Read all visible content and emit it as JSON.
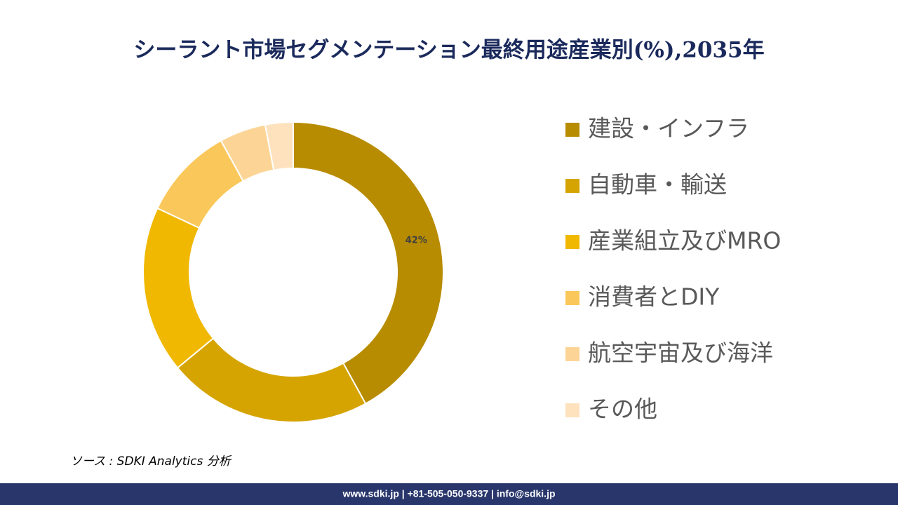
{
  "chart_data": {
    "type": "donut",
    "title": "シーラント市場セグメンテーション最終用途産業別(%),2035年",
    "categories": [
      "建設・インフラ",
      "自動車・輸送",
      "産業組立及びMRO",
      "消費者とDIY",
      "航空宇宙及び海洋",
      "その他"
    ],
    "values": [
      42,
      22,
      18,
      10,
      5,
      3
    ],
    "value_labels": [
      "42%",
      null,
      null,
      null,
      null,
      null
    ],
    "colors": [
      "#b88c00",
      "#d6a400",
      "#f0b800",
      "#fac85a",
      "#fcd596",
      "#fde2bd"
    ]
  },
  "source": "ソース : SDKI Analytics 分析",
  "footer": "www.sdki.jp | +81-505-050-9337 | info@sdki.jp"
}
